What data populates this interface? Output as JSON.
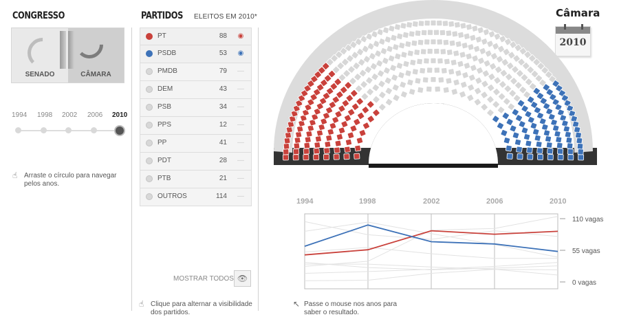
{
  "congress": {
    "title": "CONGRESSO",
    "tabs": [
      {
        "label": "SENADO",
        "selected": false
      },
      {
        "label": "CÂMARA",
        "selected": true
      }
    ],
    "years": [
      "1994",
      "1998",
      "2002",
      "2006",
      "2010"
    ],
    "selected_year": "2010",
    "hint": "Arraste o círculo para navegar pelos anos."
  },
  "parties": {
    "title": "PARTIDOS",
    "subtitle": "ELEITOS EM 2010*",
    "items": [
      {
        "name": "PT",
        "count": "88",
        "color": "#c9413b",
        "visible": true
      },
      {
        "name": "PSDB",
        "count": "53",
        "color": "#3d72b8",
        "visible": true
      },
      {
        "name": "PMDB",
        "count": "79",
        "color": "#d8d8d8",
        "visible": false
      },
      {
        "name": "DEM",
        "count": "43",
        "color": "#d8d8d8",
        "visible": false
      },
      {
        "name": "PSB",
        "count": "34",
        "color": "#d8d8d8",
        "visible": false
      },
      {
        "name": "PPS",
        "count": "12",
        "color": "#d8d8d8",
        "visible": false
      },
      {
        "name": "PP",
        "count": "41",
        "color": "#d8d8d8",
        "visible": false
      },
      {
        "name": "PDT",
        "count": "28",
        "color": "#d8d8d8",
        "visible": false
      },
      {
        "name": "PTB",
        "count": "21",
        "color": "#d8d8d8",
        "visible": false
      },
      {
        "name": "OUTROS",
        "count": "114",
        "color": "#d8d8d8",
        "visible": false
      }
    ],
    "show_all_label": "MOSTRAR TODOS",
    "hint": "Clique para alternar a visibilidade dos partidos."
  },
  "chamber": {
    "title": "Câmara",
    "calendar_year": "2010",
    "icons": [
      "calendar-icon",
      "eye-icon",
      "hand-pointer-icon",
      "cursor-arrow-icon"
    ],
    "colors": {
      "pt": "#c9413b",
      "psdb": "#3d72b8",
      "other": "#d7d7d7"
    }
  },
  "history_chart": {
    "hint": "Passe o mouse nos anos para saber o resultado."
  },
  "chart_data": {
    "type": "line",
    "x": [
      "1994",
      "1998",
      "2002",
      "2006",
      "2010"
    ],
    "ylim": [
      0,
      110
    ],
    "y_ticks": [
      "110 vagas",
      "55 vagas",
      "0 vagas"
    ],
    "series": [
      {
        "name": "PT",
        "color": "#c9413b",
        "values": [
          47,
          56,
          89,
          83,
          88
        ]
      },
      {
        "name": "PSDB",
        "color": "#3d72b8",
        "values": [
          62,
          99,
          70,
          66,
          53
        ]
      },
      {
        "color": "#e2e2e2",
        "values": [
          105,
          82,
          74,
          89,
          79
        ]
      },
      {
        "color": "#e2e2e2",
        "values": [
          88,
          104,
          84,
          65,
          43
        ]
      },
      {
        "color": "#e2e2e2",
        "values": [
          15,
          18,
          22,
          27,
          34
        ]
      },
      {
        "color": "#e2e2e2",
        "values": [
          2,
          3,
          15,
          22,
          12
        ]
      },
      {
        "color": "#e2e2e2",
        "values": [
          52,
          60,
          49,
          41,
          41
        ]
      },
      {
        "color": "#e2e2e2",
        "values": [
          34,
          25,
          21,
          24,
          28
        ]
      },
      {
        "color": "#e2e2e2",
        "values": [
          31,
          31,
          26,
          22,
          21
        ]
      },
      {
        "color": "#e2e2e2",
        "values": [
          27,
          36,
          90,
          93,
          114
        ]
      }
    ]
  }
}
